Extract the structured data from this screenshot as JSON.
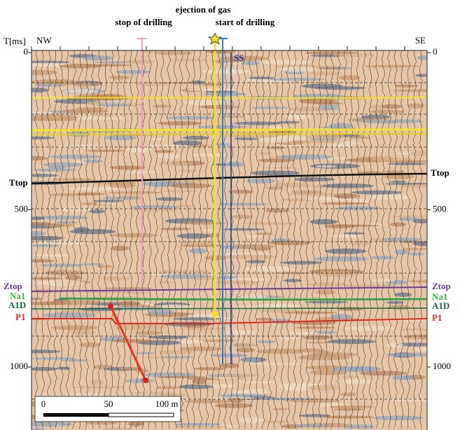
{
  "header": {
    "event_labels": [
      "ejection of gas",
      "stop of drilling",
      "start of drilling"
    ],
    "time_axis_label": "T[ms]",
    "left_direction": "NW",
    "right_direction": "SE"
  },
  "axis": {
    "ticks": [
      0,
      500,
      1000
    ]
  },
  "well_label": "SS",
  "horizons": [
    {
      "label": "Ttop"
    },
    {
      "label": "Ztop"
    },
    {
      "label": "Na1"
    },
    {
      "label": "A1D"
    },
    {
      "label": "P1"
    }
  ],
  "scale_bar": {
    "labels": [
      "0",
      "50",
      "100 m"
    ]
  }
}
